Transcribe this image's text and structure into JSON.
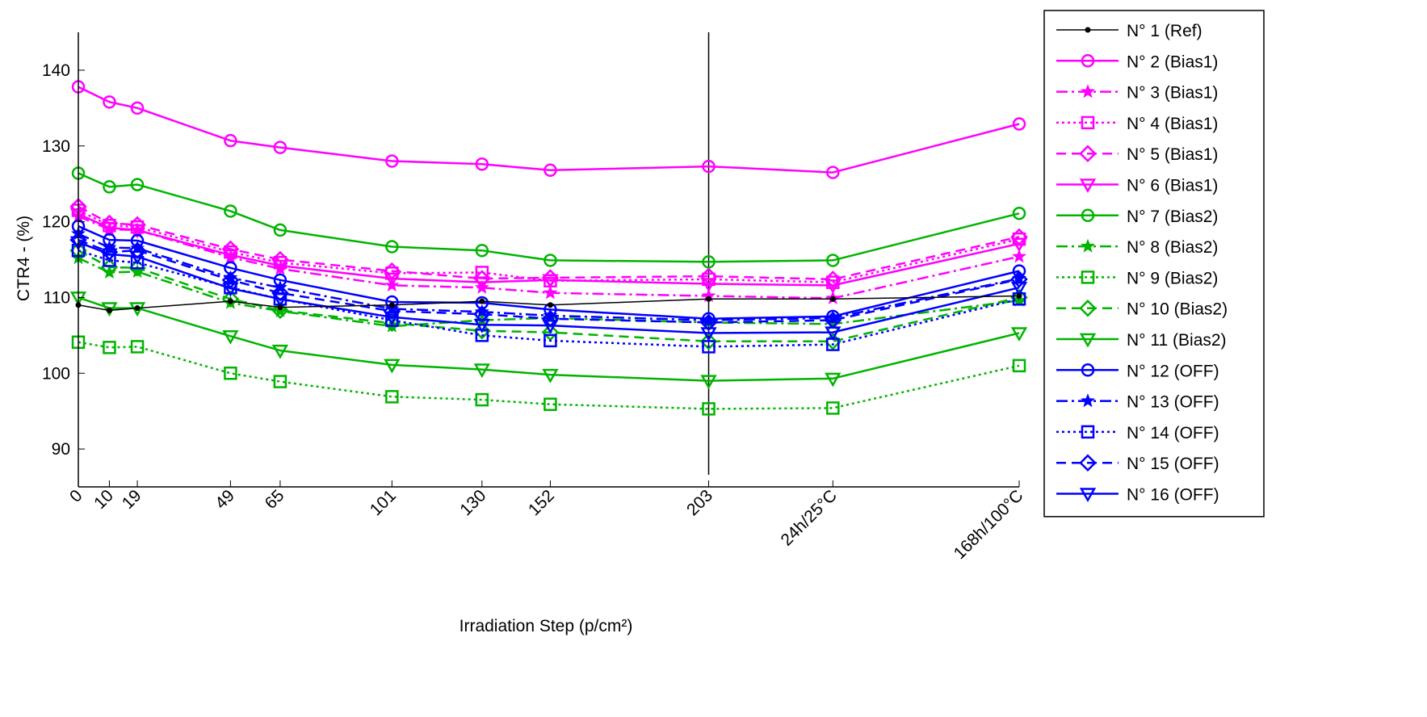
{
  "chart_data": {
    "type": "line",
    "title": "",
    "xlabel": "Irradiation Step (p/cm²)",
    "ylabel": "CTR4 - (%)",
    "ylim": [
      85,
      145
    ],
    "yticks": [
      90,
      100,
      110,
      120,
      130,
      140
    ],
    "categories": [
      "0",
      "10",
      "19",
      "49",
      "65",
      "101",
      "130",
      "152",
      "203",
      "24h/25°C",
      "168h/100°C"
    ],
    "x": [
      0,
      10,
      19,
      49,
      65,
      101,
      130,
      152,
      203,
      243,
      303
    ],
    "xlim": [
      0,
      303
    ],
    "vline_at": 203,
    "grid": false,
    "legend_position": "outside-right",
    "colors": {
      "ref": "#000000",
      "bias1": "#ff00ff",
      "bias2": "#00b400",
      "off": "#0000ff"
    },
    "series": [
      {
        "name": "N° 1 (Ref)",
        "color": "#000000",
        "dash": "solid",
        "marker": "dot",
        "values": [
          109,
          108.3,
          108.6,
          109.5,
          108.7,
          109.0,
          109.5,
          109.0,
          109.8,
          109.8,
          110.2
        ]
      },
      {
        "name": "N° 2 (Bias1)",
        "color": "#ff00ff",
        "dash": "solid",
        "marker": "circle",
        "values": [
          137.8,
          135.8,
          135.0,
          130.7,
          129.8,
          128.0,
          127.6,
          126.8,
          127.3,
          126.5,
          132.9
        ]
      },
      {
        "name": "N° 3 (Bias1)",
        "color": "#ff00ff",
        "dash": "dashdot",
        "marker": "star",
        "values": [
          120.7,
          119.0,
          118.9,
          115.3,
          113.8,
          111.6,
          111.3,
          110.6,
          110.2,
          109.9,
          115.4
        ]
      },
      {
        "name": "N° 4 (Bias1)",
        "color": "#ff00ff",
        "dash": "dotted",
        "marker": "square",
        "values": [
          121.5,
          119.5,
          119.3,
          116.0,
          114.6,
          113.2,
          113.3,
          112.2,
          112.4,
          112.0,
          117.7
        ]
      },
      {
        "name": "N° 5 (Bias1)",
        "color": "#ff00ff",
        "dash": "dashed",
        "marker": "diamond",
        "values": [
          122.0,
          119.8,
          119.6,
          116.4,
          115.0,
          113.5,
          112.5,
          112.6,
          112.8,
          112.4,
          118.0
        ]
      },
      {
        "name": "N° 6 (Bias1)",
        "color": "#ff00ff",
        "dash": "solid",
        "marker": "triangle-down",
        "values": [
          121.0,
          119.2,
          118.9,
          115.6,
          114.2,
          112.5,
          112.0,
          112.3,
          111.8,
          111.6,
          117.1
        ]
      },
      {
        "name": "N° 7 (Bias2)",
        "color": "#00b400",
        "dash": "solid",
        "marker": "circle",
        "values": [
          126.4,
          124.6,
          124.9,
          121.4,
          118.9,
          116.7,
          116.2,
          114.9,
          114.7,
          114.9,
          121.1
        ]
      },
      {
        "name": "N° 8 (Bias2)",
        "color": "#00b400",
        "dash": "dashdot",
        "marker": "star",
        "values": [
          115.2,
          113.3,
          113.4,
          109.3,
          108.2,
          106.2,
          107.0,
          107.3,
          106.7,
          106.5,
          109.6
        ]
      },
      {
        "name": "N° 9 (Bias2)",
        "color": "#00b400",
        "dash": "dotted",
        "marker": "square",
        "values": [
          104.1,
          103.4,
          103.5,
          100.0,
          98.9,
          96.9,
          96.5,
          95.9,
          95.3,
          95.4,
          101.0
        ]
      },
      {
        "name": "N° 10 (Bias2)",
        "color": "#00b400",
        "dash": "dashed",
        "marker": "diamond",
        "values": [
          116.2,
          114.0,
          113.9,
          109.8,
          108.3,
          106.6,
          105.6,
          105.4,
          104.2,
          104.2,
          110.0
        ]
      },
      {
        "name": "N° 11 (Bias2)",
        "color": "#00b400",
        "dash": "solid",
        "marker": "triangle-down",
        "values": [
          110.0,
          108.6,
          108.6,
          104.9,
          103.0,
          101.1,
          100.5,
          99.8,
          99.0,
          99.3,
          105.3
        ]
      },
      {
        "name": "N° 12 (OFF)",
        "color": "#0000ff",
        "dash": "solid",
        "marker": "circle",
        "values": [
          119.4,
          117.6,
          117.5,
          113.9,
          112.3,
          109.4,
          109.3,
          108.4,
          107.2,
          107.5,
          113.5
        ]
      },
      {
        "name": "N° 13 (OFF)",
        "color": "#0000ff",
        "dash": "dashdot",
        "marker": "star",
        "values": [
          118.4,
          116.6,
          116.5,
          112.6,
          111.3,
          108.5,
          108.1,
          107.6,
          107.0,
          107.3,
          112.5
        ]
      },
      {
        "name": "N° 14 (OFF)",
        "color": "#0000ff",
        "dash": "dotted",
        "marker": "square",
        "values": [
          116.2,
          114.9,
          114.6,
          111.3,
          109.8,
          107.0,
          105.0,
          104.3,
          103.5,
          103.8,
          109.8
        ]
      },
      {
        "name": "N° 15 (OFF)",
        "color": "#0000ff",
        "dash": "dashed",
        "marker": "diamond",
        "values": [
          117.6,
          116.0,
          116.2,
          112.3,
          110.6,
          108.2,
          107.8,
          107.2,
          106.7,
          107.0,
          112.4
        ]
      },
      {
        "name": "N° 16 (OFF)",
        "color": "#0000ff",
        "dash": "solid",
        "marker": "triangle-down",
        "values": [
          117.3,
          115.7,
          115.4,
          111.2,
          109.8,
          107.4,
          106.4,
          106.3,
          105.3,
          105.4,
          111.3
        ]
      }
    ]
  }
}
